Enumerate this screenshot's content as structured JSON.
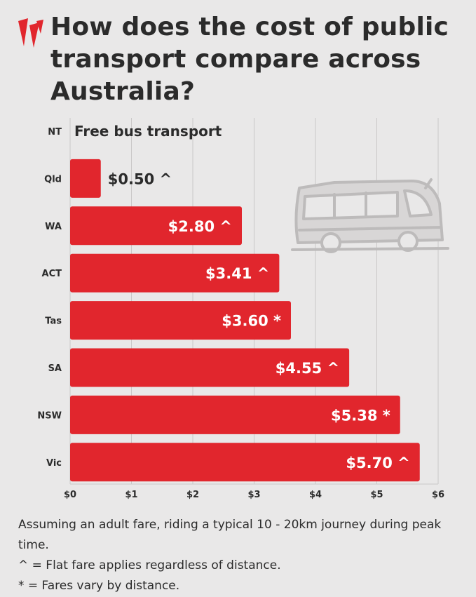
{
  "header": {
    "title": "How does the cost of public transport compare across Australia?"
  },
  "colors": {
    "bar": "#e1262d",
    "background": "#e9e8e8",
    "text": "#2b2b2b",
    "grid": "#c9c7c7"
  },
  "icons": [
    "sbs-logo-icon",
    "bus-icon"
  ],
  "chart_data": {
    "type": "bar",
    "orientation": "horizontal",
    "title": "How does the cost of public transport compare across Australia?",
    "categories": [
      "NT",
      "Qld",
      "WA",
      "ACT",
      "Tas",
      "SA",
      "NSW",
      "Vic"
    ],
    "values": [
      0,
      0.5,
      2.8,
      3.41,
      3.6,
      4.55,
      5.38,
      5.7
    ],
    "labels": [
      "Free bus transport",
      "$0.50 ^",
      "$2.80 ^",
      "$3.41 ^",
      "$3.60 *",
      "$4.55 ^",
      "$5.38 *",
      "$5.70 ^"
    ],
    "x_ticks": [
      "$0",
      "$1",
      "$2",
      "$3",
      "$4",
      "$5",
      "$6"
    ],
    "xlim": [
      0,
      6
    ],
    "xlabel": "",
    "ylabel": "",
    "grid": true
  },
  "notes": {
    "line1": "Assuming an adult fare, riding a typical 10 - 20km journey during peak time.",
    "line2": "^ = Flat fare applies regardless of distance.",
    "line3": "* = Fares vary by distance."
  }
}
